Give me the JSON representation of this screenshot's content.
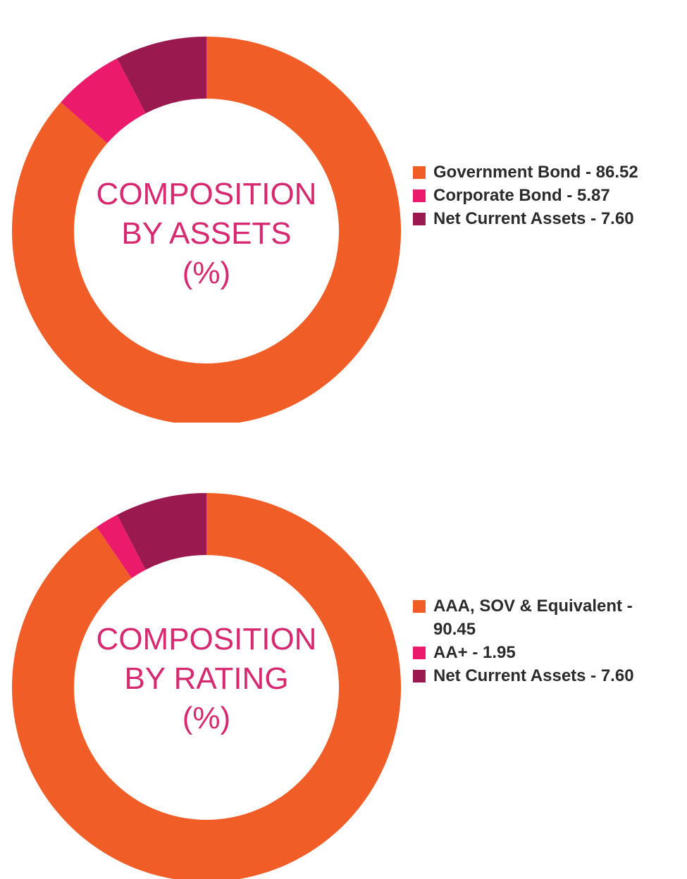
{
  "colors": {
    "orange": "#f15d26",
    "pink": "#ec1a6b",
    "maroon": "#9a1a4f",
    "title": "#d6296f",
    "text": "#2b2b2b"
  },
  "chart_data": [
    {
      "type": "pie",
      "variant": "donut",
      "title_lines": [
        "COMPOSITION",
        "BY ASSETS",
        "(%)"
      ],
      "categories": [
        "Government Bond",
        "Corporate Bond",
        "Net Current Assets"
      ],
      "values": [
        86.52,
        5.87,
        7.6
      ],
      "colors": [
        "#f15d26",
        "#ec1a6b",
        "#9a1a4f"
      ],
      "legend_labels": [
        "Government Bond - 86.52",
        "Corporate Bond - 5.87",
        "Net Current Assets - 7.60"
      ],
      "legend_position": "right"
    },
    {
      "type": "pie",
      "variant": "donut",
      "title_lines": [
        "COMPOSITION",
        "BY RATING",
        "(%)"
      ],
      "categories": [
        "AAA, SOV & Equivalent",
        "AA+",
        "Net Current Assets"
      ],
      "values": [
        90.45,
        1.95,
        7.6
      ],
      "colors": [
        "#f15d26",
        "#ec1a6b",
        "#9a1a4f"
      ],
      "legend_labels": [
        "AAA, SOV & Equivalent - 90.45",
        "AA+ - 1.95",
        "Net Current Assets - 7.60"
      ],
      "legend_position": "right"
    }
  ]
}
